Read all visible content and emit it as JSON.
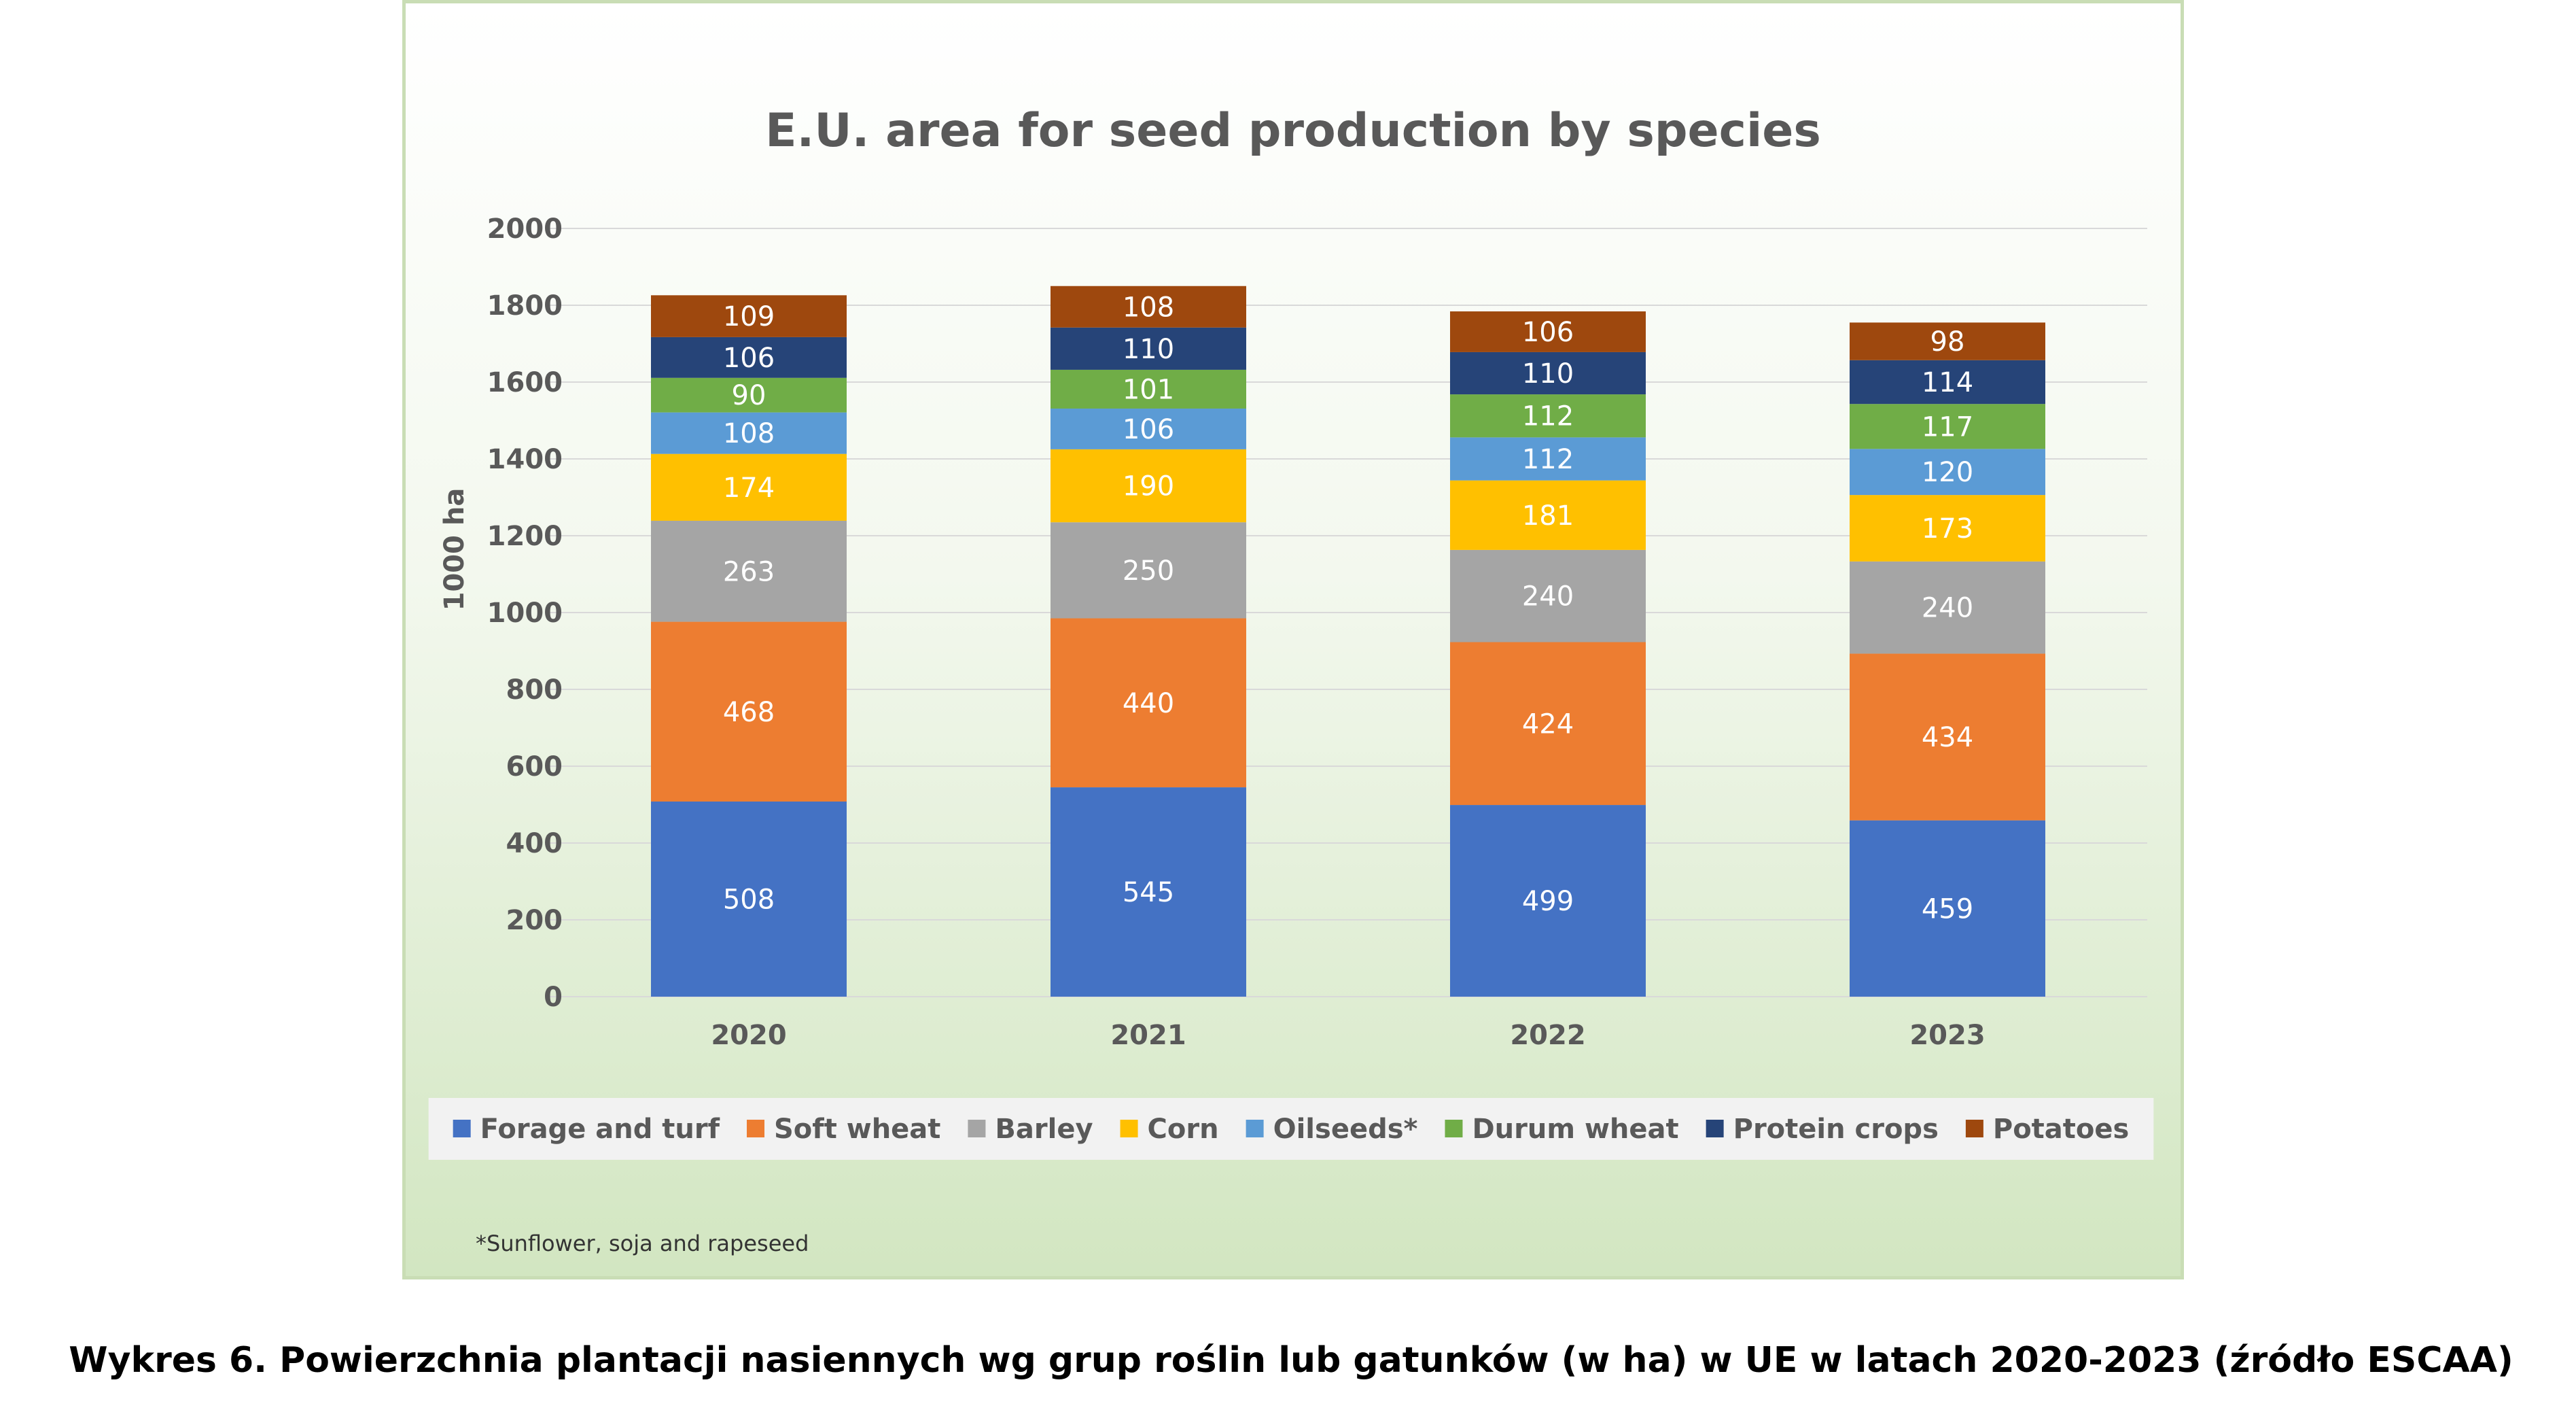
{
  "chart_data": {
    "type": "bar",
    "stacked": true,
    "title": "E.U. area for seed production by species",
    "xlabel": "",
    "ylabel": "1000 ha",
    "ylim": [
      0,
      2000
    ],
    "yticks": [
      0,
      200,
      400,
      600,
      800,
      1000,
      1200,
      1400,
      1600,
      1800,
      2000
    ],
    "grid": true,
    "legend_position": "bottom",
    "categories": [
      "2020",
      "2021",
      "2022",
      "2023"
    ],
    "series": [
      {
        "name": "Forage and turf",
        "color": "#4472c4",
        "values": [
          508,
          545,
          499,
          459
        ]
      },
      {
        "name": "Soft wheat",
        "color": "#ed7d31",
        "values": [
          468,
          440,
          424,
          434
        ]
      },
      {
        "name": "Barley",
        "color": "#a5a5a5",
        "values": [
          263,
          250,
          240,
          240
        ]
      },
      {
        "name": "Corn",
        "color": "#ffc000",
        "values": [
          174,
          190,
          181,
          173
        ]
      },
      {
        "name": "Oilseeds*",
        "color": "#5b9bd5",
        "values": [
          108,
          106,
          112,
          120
        ]
      },
      {
        "name": "Durum wheat",
        "color": "#70ad47",
        "values": [
          90,
          101,
          112,
          117
        ]
      },
      {
        "name": "Protein crops",
        "color": "#264478",
        "values": [
          106,
          110,
          110,
          114
        ]
      },
      {
        "name": "Potatoes",
        "color": "#9e480e",
        "values": [
          109,
          108,
          106,
          98
        ]
      }
    ]
  },
  "footnote": "*Sunflower, soja and rapeseed",
  "caption": "Wykres 6. Powierzchnia plantacji nasiennych wg grup roślin lub gatunków (w ha) w UE w latach 2020-2023 (źródło ESCAA)"
}
